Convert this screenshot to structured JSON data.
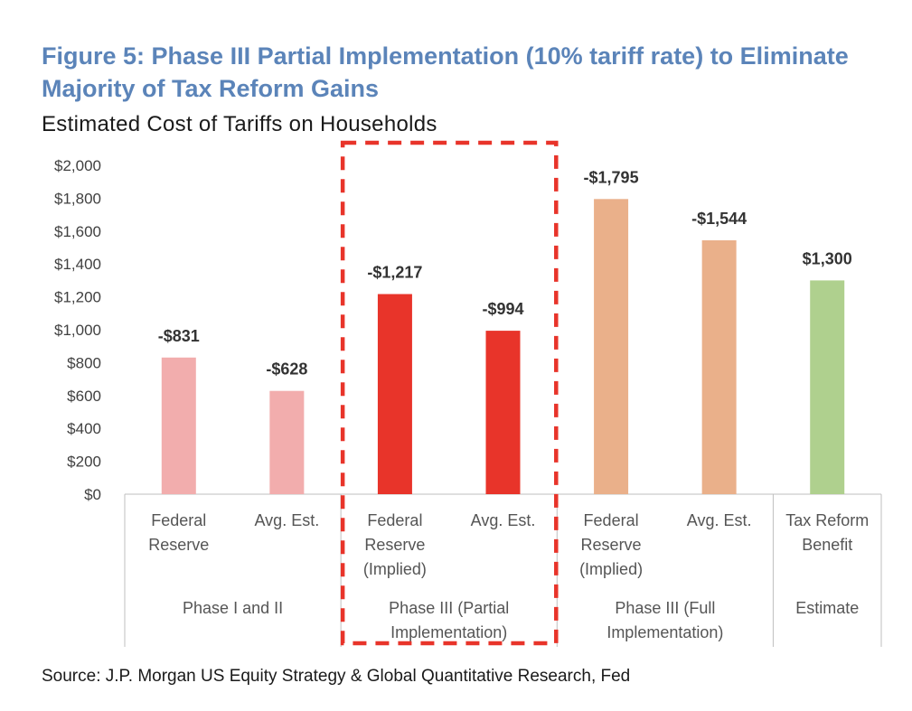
{
  "title": "Figure 5: Phase III Partial Implementation (10% tariff rate) to Eliminate Majority of Tax Reform Gains",
  "subtitle": "Estimated Cost of Tariffs on Households",
  "source": "Source: J.P. Morgan US Equity Strategy & Global Quantitative Research, Fed",
  "chart_data": {
    "type": "bar",
    "ylim": [
      0,
      2000
    ],
    "yticks": [
      0,
      200,
      400,
      600,
      800,
      1000,
      1200,
      1400,
      1600,
      1800,
      2000
    ],
    "ytick_labels": [
      "$0",
      "$200",
      "$400",
      "$600",
      "$800",
      "$1,000",
      "$1,200",
      "$1,400",
      "$1,600",
      "$1,800",
      "$2,000"
    ],
    "bars": [
      {
        "category": [
          "Federal",
          "Reserve"
        ],
        "group": 0,
        "value": 831,
        "label": "-$831",
        "color": "#f2adad"
      },
      {
        "category": [
          "Avg. Est."
        ],
        "group": 0,
        "value": 628,
        "label": "-$628",
        "color": "#f2adad"
      },
      {
        "category": [
          "Federal",
          "Reserve",
          "(Implied)"
        ],
        "group": 1,
        "value": 1217,
        "label": "-$1,217",
        "color": "#e8342a"
      },
      {
        "category": [
          "Avg. Est."
        ],
        "group": 1,
        "value": 994,
        "label": "-$994",
        "color": "#e8342a"
      },
      {
        "category": [
          "Federal",
          "Reserve",
          "(Implied)"
        ],
        "group": 2,
        "value": 1795,
        "label": "-$1,795",
        "color": "#eab08a"
      },
      {
        "category": [
          "Avg. Est."
        ],
        "group": 2,
        "value": 1544,
        "label": "-$1,544",
        "color": "#eab08a"
      },
      {
        "category": [
          "Tax Reform",
          "Benefit"
        ],
        "group": 3,
        "value": 1300,
        "label": "$1,300",
        "color": "#afd08e"
      }
    ],
    "groups": [
      {
        "label": [
          "Phase I and II"
        ]
      },
      {
        "label": [
          "Phase III (Partial",
          "Implementation)"
        ]
      },
      {
        "label": [
          "Phase III (Full",
          "Implementation)"
        ]
      },
      {
        "label": [
          "Estimate"
        ]
      }
    ],
    "highlight_group": 1,
    "highlight_color": "#e8342a"
  }
}
